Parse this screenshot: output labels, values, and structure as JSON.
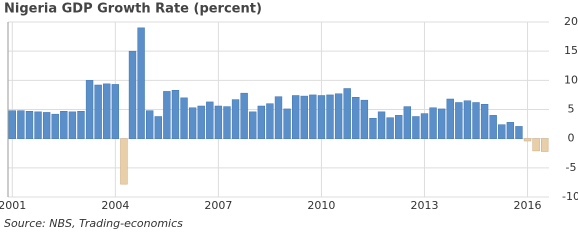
{
  "chart_data": {
    "type": "bar",
    "title": "Nigeria GDP Growth Rate (percent)",
    "source": "Source: NBS, Trading-economics",
    "categories": [
      "2001",
      null,
      null,
      null,
      null,
      null,
      null,
      null,
      null,
      null,
      null,
      null,
      "2004",
      null,
      null,
      null,
      null,
      null,
      null,
      null,
      null,
      null,
      null,
      null,
      "2007",
      null,
      null,
      null,
      null,
      null,
      null,
      null,
      null,
      null,
      null,
      null,
      "2010",
      null,
      null,
      null,
      null,
      null,
      null,
      null,
      null,
      null,
      null,
      null,
      "2013",
      null,
      null,
      null,
      null,
      null,
      null,
      null,
      null,
      null,
      null,
      null,
      "2016",
      null,
      null
    ],
    "values": [
      4.8,
      4.8,
      4.7,
      4.6,
      4.5,
      4.2,
      4.7,
      4.6,
      4.7,
      10.0,
      9.2,
      9.4,
      9.3,
      -7.8,
      15.0,
      19.0,
      4.8,
      3.8,
      8.1,
      8.3,
      7.0,
      5.3,
      5.6,
      6.3,
      5.6,
      5.5,
      6.7,
      7.8,
      4.6,
      5.6,
      6.0,
      7.2,
      5.1,
      7.4,
      7.3,
      7.5,
      7.4,
      7.5,
      7.7,
      8.6,
      7.1,
      6.6,
      3.5,
      4.6,
      3.6,
      4.0,
      5.5,
      3.8,
      4.3,
      5.3,
      5.1,
      6.8,
      6.2,
      6.5,
      6.2,
      5.9,
      4.0,
      2.4,
      2.8,
      2.1,
      -0.4,
      -2.1,
      -2.2
    ],
    "color": "#5b8fc9",
    "negative_color": "#e9cfa8",
    "ylim": [
      -10,
      20
    ],
    "yticks": [
      -10,
      -5,
      0,
      5,
      10,
      15,
      20
    ],
    "grid": true,
    "y_axis_side": "right"
  }
}
